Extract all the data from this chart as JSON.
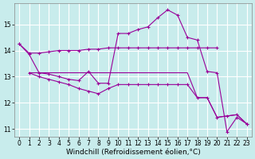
{
  "xlabel": "Windchill (Refroidissement éolien,°C)",
  "background_color": "#c8ecec",
  "grid_color": "#ffffff",
  "line_color": "#990099",
  "xlim": [
    -0.5,
    23.5
  ],
  "ylim": [
    10.7,
    15.8
  ],
  "yticks": [
    11,
    12,
    13,
    14,
    15
  ],
  "xticks": [
    0,
    1,
    2,
    3,
    4,
    5,
    6,
    7,
    8,
    9,
    10,
    11,
    12,
    13,
    14,
    15,
    16,
    17,
    18,
    19,
    20,
    21,
    22,
    23
  ],
  "line1_x": [
    0,
    1,
    2,
    3,
    4,
    5,
    6,
    7,
    8,
    9,
    10,
    11,
    12,
    13,
    14,
    15,
    16,
    17,
    18,
    19,
    20
  ],
  "line1_y": [
    14.25,
    13.9,
    13.9,
    13.95,
    14.0,
    14.0,
    14.0,
    14.05,
    14.05,
    14.1,
    14.1,
    14.1,
    14.1,
    14.1,
    14.1,
    14.1,
    14.1,
    14.1,
    14.1,
    14.1,
    14.1
  ],
  "line2_x": [
    0,
    1,
    2,
    3,
    4,
    5,
    6,
    7,
    8,
    9,
    10,
    11,
    12,
    13,
    14,
    15,
    16,
    17,
    18,
    19,
    20,
    21,
    22,
    23
  ],
  "line2_y": [
    14.25,
    13.85,
    13.15,
    13.1,
    13.0,
    12.9,
    12.85,
    13.2,
    12.75,
    12.75,
    14.65,
    14.65,
    14.8,
    14.9,
    15.25,
    15.55,
    15.35,
    14.5,
    14.4,
    13.2,
    13.15,
    10.9,
    11.45,
    11.2
  ],
  "line3_x": [
    1,
    2,
    3,
    4,
    5,
    6,
    7,
    8,
    9,
    10,
    11,
    12,
    13,
    14,
    15,
    16,
    17,
    18,
    19,
    20,
    21,
    22,
    23
  ],
  "line3_y": [
    13.15,
    13.15,
    13.15,
    13.15,
    13.15,
    13.15,
    13.15,
    13.15,
    13.15,
    13.15,
    13.15,
    13.15,
    13.15,
    13.15,
    13.15,
    13.15,
    13.15,
    12.2,
    12.2,
    11.45,
    11.5,
    11.55,
    11.2
  ],
  "line4_x": [
    1,
    2,
    3,
    4,
    5,
    6,
    7,
    8,
    9,
    10,
    11,
    12,
    13,
    14,
    15,
    16,
    17,
    18,
    19,
    20,
    21,
    22,
    23
  ],
  "line4_y": [
    13.15,
    13.0,
    12.9,
    12.8,
    12.7,
    12.55,
    12.45,
    12.35,
    12.55,
    12.7,
    12.7,
    12.7,
    12.7,
    12.7,
    12.7,
    12.7,
    12.7,
    12.2,
    12.2,
    11.45,
    11.5,
    11.55,
    11.2
  ],
  "marker": "+",
  "markersize": 3,
  "linewidth": 0.8,
  "tick_fontsize": 5.5,
  "xlabel_fontsize": 6.5
}
